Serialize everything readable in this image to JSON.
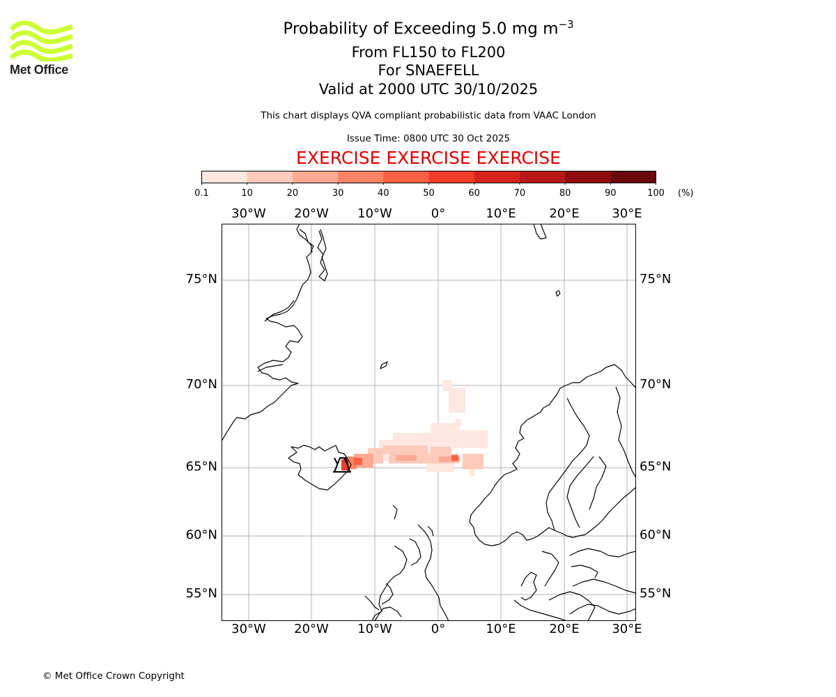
{
  "title": {
    "line1": "Probability of Exceeding 5.0 mg m",
    "line1_superscript": "−3",
    "line2": "From FL150 to FL200",
    "line3": "For SNAEFELL",
    "line4": "Valid at 2000 UTC 30/10/2025"
  },
  "subtitle": "This chart displays QVA compliant probabilistic data from VAAC London",
  "issue_time": "Issue Time: 0800 UTC 30 Oct 2025",
  "exercise_banner": "EXERCISE EXERCISE EXERCISE",
  "logo": {
    "text": "Met Office",
    "color": "#ccff33"
  },
  "copyright": "© Met Office Crown Copyright",
  "colorbar": {
    "ticks": [
      "0.1",
      "10",
      "20",
      "30",
      "40",
      "50",
      "60",
      "70",
      "80",
      "90",
      "100"
    ],
    "unit": "(%)",
    "colors": [
      "#fee8e1",
      "#fdcabb",
      "#fca892",
      "#fc8466",
      "#f96044",
      "#f03d29",
      "#d6241d",
      "#b81717",
      "#8e0c0c",
      "#6b0a0a"
    ]
  },
  "map": {
    "lon_labels": [
      "30°W",
      "20°W",
      "10°W",
      "0°",
      "10°E",
      "20°E",
      "30°E"
    ],
    "lat_labels": [
      "75°N",
      "70°N",
      "65°N",
      "60°N",
      "55°N"
    ],
    "volcano": "SNAEFELL"
  }
}
